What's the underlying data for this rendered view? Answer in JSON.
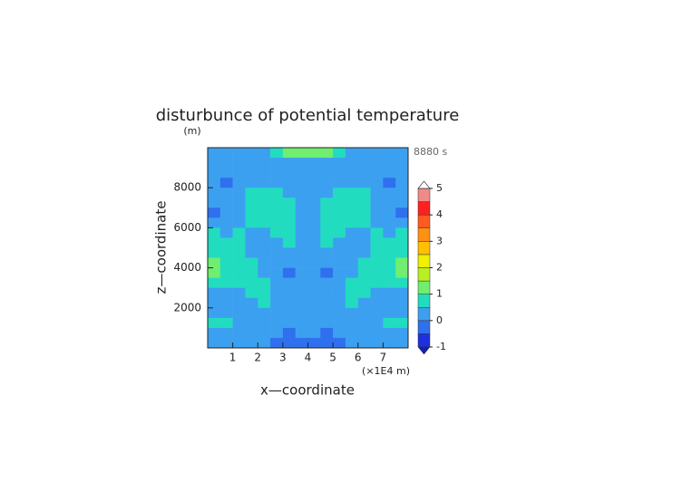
{
  "chart_data": {
    "type": "contour",
    "title": "disturbunce of potential temperature",
    "y_unit": "(m)",
    "time_label": "8880 s",
    "xlabel": "x—coordinate",
    "ylabel": "z—coordinate",
    "x_unit": "(×1E4 m)",
    "xlim": [
      0,
      8
    ],
    "ylim": [
      0,
      10000
    ],
    "xticks": [
      1,
      2,
      3,
      4,
      5,
      6,
      7
    ],
    "yticks": [
      2000,
      4000,
      6000,
      8000
    ],
    "x": [
      0.25,
      0.75,
      1.25,
      1.75,
      2.25,
      2.75,
      3.25,
      3.75,
      4.25,
      4.75,
      5.25,
      5.75,
      6.25,
      6.75,
      7.25,
      7.75
    ],
    "y": [
      9750,
      9250,
      8750,
      8250,
      7750,
      7250,
      6750,
      6250,
      5750,
      5250,
      4750,
      4250,
      3750,
      3250,
      2750,
      2250,
      1750,
      1250,
      750,
      250
    ],
    "z": [
      [
        0.2,
        0.2,
        0.2,
        0.2,
        0.3,
        0.5,
        1.2,
        1.2,
        1.2,
        1.2,
        0.5,
        0.3,
        0.2,
        0.2,
        0.2,
        0.2
      ],
      [
        0.2,
        0.2,
        0.2,
        0.1,
        0.1,
        0.2,
        0.3,
        0.2,
        0.2,
        0.3,
        0.2,
        0.1,
        0.1,
        0.2,
        0.2,
        0.2
      ],
      [
        0.3,
        0.2,
        0.2,
        0.1,
        0.1,
        0.2,
        0.3,
        0.2,
        0.2,
        0.3,
        0.2,
        0.1,
        0.1,
        0.2,
        0.2,
        0.3
      ],
      [
        0.2,
        -0.2,
        0.2,
        0.3,
        0.3,
        0.3,
        0.3,
        0.2,
        0.2,
        0.3,
        0.3,
        0.3,
        0.3,
        0.2,
        -0.2,
        0.2
      ],
      [
        0.3,
        0.2,
        0.3,
        0.5,
        0.7,
        0.6,
        0.4,
        0.2,
        0.2,
        0.4,
        0.6,
        0.7,
        0.5,
        0.3,
        0.2,
        0.3
      ],
      [
        0.2,
        0.3,
        0.3,
        0.7,
        0.8,
        0.8,
        0.6,
        0.3,
        0.3,
        0.6,
        0.8,
        0.8,
        0.7,
        0.3,
        0.3,
        0.2
      ],
      [
        -0.3,
        0.2,
        0.4,
        0.8,
        0.8,
        0.8,
        0.7,
        0.3,
        0.3,
        0.7,
        0.8,
        0.8,
        0.8,
        0.4,
        0.2,
        -0.3
      ],
      [
        0.3,
        0.3,
        0.3,
        0.5,
        0.7,
        0.7,
        0.8,
        0.4,
        0.4,
        0.8,
        0.7,
        0.7,
        0.5,
        0.3,
        0.3,
        0.3
      ],
      [
        0.6,
        0.3,
        0.6,
        0.4,
        0.3,
        0.6,
        0.8,
        0.4,
        0.4,
        0.8,
        0.6,
        0.3,
        0.4,
        0.6,
        0.3,
        0.6
      ],
      [
        0.7,
        0.6,
        0.5,
        0.3,
        0.3,
        0.3,
        0.6,
        0.3,
        0.3,
        0.6,
        0.3,
        0.3,
        0.3,
        0.5,
        0.6,
        0.7
      ],
      [
        0.8,
        0.7,
        0.6,
        0.3,
        0.2,
        0.2,
        0.3,
        0.2,
        0.2,
        0.3,
        0.2,
        0.2,
        0.3,
        0.6,
        0.7,
        0.8
      ],
      [
        1.3,
        0.8,
        0.7,
        0.5,
        0.2,
        0.1,
        0.2,
        0.1,
        0.1,
        0.2,
        0.1,
        0.2,
        0.5,
        0.7,
        0.8,
        1.3
      ],
      [
        1.4,
        0.8,
        0.7,
        0.6,
        0.3,
        0.1,
        -0.1,
        0.1,
        0.1,
        -0.1,
        0.1,
        0.3,
        0.6,
        0.7,
        0.8,
        1.4
      ],
      [
        0.8,
        0.6,
        0.7,
        0.7,
        0.5,
        0.2,
        0.1,
        0.2,
        0.2,
        0.1,
        0.2,
        0.5,
        0.7,
        0.7,
        0.6,
        0.8
      ],
      [
        0.3,
        0.3,
        0.4,
        0.6,
        0.7,
        0.3,
        0.2,
        0.1,
        0.1,
        0.2,
        0.3,
        0.7,
        0.6,
        0.4,
        0.3,
        0.3
      ],
      [
        0.2,
        0.2,
        0.2,
        0.3,
        0.6,
        0.3,
        0.2,
        0.1,
        0.1,
        0.2,
        0.3,
        0.6,
        0.3,
        0.2,
        0.2,
        0.2
      ],
      [
        0.3,
        0.2,
        0.2,
        0.2,
        0.2,
        0.3,
        0.2,
        0.1,
        0.1,
        0.2,
        0.3,
        0.2,
        0.2,
        0.2,
        0.2,
        0.3
      ],
      [
        0.6,
        0.6,
        0.3,
        0.2,
        0.2,
        0.2,
        0.3,
        0.1,
        0.1,
        0.3,
        0.2,
        0.2,
        0.2,
        0.3,
        0.6,
        0.6
      ],
      [
        0.3,
        0.3,
        0.2,
        0.2,
        0.1,
        0.0,
        -0.2,
        0.1,
        0.1,
        -0.2,
        0.0,
        0.1,
        0.2,
        0.2,
        0.3,
        0.3
      ],
      [
        0.1,
        0.2,
        0.1,
        0.1,
        0.0,
        -0.4,
        -0.3,
        -0.4,
        -0.4,
        -0.3,
        -0.4,
        0.0,
        0.1,
        0.1,
        0.2,
        0.1
      ]
    ],
    "levels": [
      -1,
      -0.5,
      0,
      0.5,
      1,
      1.5,
      2,
      2.5,
      3,
      3.5,
      4,
      4.5,
      5
    ],
    "colors": [
      "#1c30e0",
      "#2f70ee",
      "#3ca0f0",
      "#22dcc0",
      "#70ee70",
      "#b8f020",
      "#f0f000",
      "#ffc000",
      "#ff9010",
      "#ff5a20",
      "#ff2020",
      "#f08a8a",
      "#f4b4b4"
    ],
    "under_color": "#1020b0",
    "over_color": "#ffffff",
    "colorbar_ticks": [
      -1,
      0,
      1,
      2,
      3,
      4,
      5
    ]
  }
}
